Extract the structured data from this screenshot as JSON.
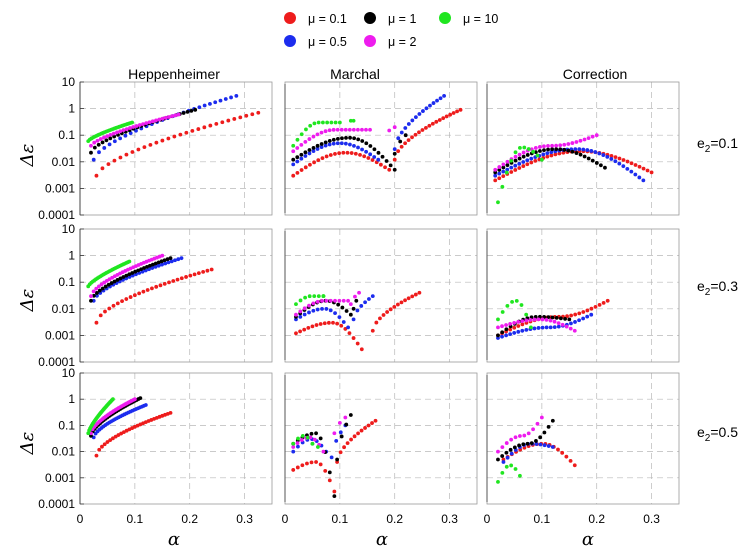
{
  "legend": [
    {
      "label": "μ = 0.1",
      "color": "#ee1c1c",
      "key": "mu01"
    },
    {
      "label": "μ = 1",
      "color": "#000000",
      "key": "mu1"
    },
    {
      "label": "μ = 10",
      "color": "#20e620",
      "key": "mu10"
    },
    {
      "label": "μ = 0.5",
      "color": "#1c2cee",
      "key": "mu05"
    },
    {
      "label": "μ = 2",
      "color": "#ee1cee",
      "key": "mu2"
    }
  ],
  "column_titles": [
    "Heppenheimer",
    "Marchal",
    "Correction"
  ],
  "row_labels": [
    "e2=0.1",
    "e2=0.3",
    "e2=0.5"
  ],
  "row_label_parts": [
    {
      "base": "e",
      "sub": "2",
      "rest": "=0.1"
    },
    {
      "base": "e",
      "sub": "2",
      "rest": "=0.3"
    },
    {
      "base": "e",
      "sub": "2",
      "rest": "=0.5"
    }
  ],
  "ylabel": "Δε",
  "xlabel": "α",
  "y_tick_labels": [
    "10",
    "1",
    "0.1",
    "0.01",
    "0.001",
    "0.0001"
  ],
  "x_tick_labels": [
    "0",
    "0.1",
    "0.2",
    "0.3"
  ],
  "chart_data": {
    "type": "scatter",
    "title": "",
    "xlabel": "α",
    "ylabel": "Δε",
    "x_range": [
      0,
      0.35
    ],
    "y_range": [
      0.0001,
      10
    ],
    "y_scale": "log",
    "panels": [
      {
        "row": 0,
        "col": 0,
        "series": [
          {
            "key": "mu01",
            "x_start": 0.03,
            "x_end": 0.325,
            "y_start": 0.003,
            "y_end": 0.7,
            "curvature": 0.65
          },
          {
            "key": "mu05",
            "x_start": 0.025,
            "x_end": 0.285,
            "y_start": 0.012,
            "y_end": 3.0,
            "curvature": 0.65
          },
          {
            "key": "mu1",
            "x_start": 0.02,
            "x_end": 0.21,
            "y_start": 0.022,
            "y_end": 0.9,
            "curvature": 0.65
          },
          {
            "key": "mu2",
            "x_start": 0.02,
            "x_end": 0.18,
            "y_start": 0.04,
            "y_end": 0.6,
            "curvature": 0.7
          },
          {
            "key": "mu10",
            "x_start": 0.015,
            "x_end": 0.095,
            "y_start": 0.06,
            "y_end": 0.3,
            "curvature": 0.75
          }
        ]
      },
      {
        "row": 0,
        "col": 1,
        "series": [
          {
            "key": "mu01",
            "branch1": {
              "x_start": 0.015,
              "x_end": 0.19,
              "y_start": 0.003,
              "y_peak": 0.022,
              "y_end": 0.005
            },
            "branch2": {
              "x_start": 0.2,
              "x_end": 0.32,
              "y_start": 0.012,
              "y_end": 0.9
            }
          },
          {
            "key": "mu05",
            "branch1": {
              "x_start": 0.015,
              "x_end": 0.17,
              "y_start": 0.008,
              "y_peak": 0.05,
              "y_end": 0.012
            },
            "branch2": {
              "x_start": 0.2,
              "x_end": 0.29,
              "y_start": 0.03,
              "y_end": 3.0
            }
          },
          {
            "key": "mu1",
            "branch1": {
              "x_start": 0.015,
              "x_end": 0.2,
              "y_start": 0.012,
              "y_peak": 0.08,
              "y_end": 0.005
            },
            "branch2": {
              "x_start": 0.2,
              "x_end": 0.22,
              "y_start": 0.02,
              "y_end": 0.1
            }
          },
          {
            "key": "mu2",
            "branch1": {
              "x_start": 0.015,
              "x_end": 0.155,
              "y_start": 0.025,
              "y_peak": 0.16,
              "y_end": 0.16
            },
            "branch2": {
              "x_start": 0.19,
              "x_end": 0.2,
              "y_start": 0.15,
              "y_end": 0.2
            }
          },
          {
            "key": "mu10",
            "branch1": {
              "x_start": 0.015,
              "x_end": 0.1,
              "y_start": 0.04,
              "y_peak": 0.3,
              "y_end": 0.3
            },
            "branch2": {
              "x_start": 0.12,
              "x_end": 0.125,
              "y_start": 0.35,
              "y_end": 0.35
            }
          }
        ]
      },
      {
        "row": 0,
        "col": 2,
        "series": [
          {
            "key": "mu01",
            "x_start": 0.015,
            "x_end": 0.3,
            "y_start": 0.002,
            "y_peak": 0.025,
            "y_end": 0.004
          },
          {
            "key": "mu05",
            "x_start": 0.015,
            "x_end": 0.285,
            "y_start": 0.003,
            "y_peak": 0.03,
            "y_end": 0.002
          },
          {
            "key": "mu1",
            "x_start": 0.015,
            "x_end": 0.215,
            "y_start": 0.004,
            "y_peak": 0.03,
            "y_end": 0.006
          },
          {
            "key": "mu2",
            "x_start": 0.015,
            "x_end": 0.2,
            "y_start": 0.005,
            "y_peak": 0.04,
            "y_end": 0.1
          },
          {
            "key": "mu10",
            "x_start": 0.02,
            "x_end": 0.1,
            "y_start": 0.0003,
            "y_peak": 0.035,
            "y_end": 0.012
          }
        ]
      },
      {
        "row": 1,
        "col": 0,
        "series": [
          {
            "key": "mu01",
            "x_start": 0.03,
            "x_end": 0.24,
            "y_start": 0.003,
            "y_end": 0.3,
            "curvature": 0.6
          },
          {
            "key": "mu05",
            "x_start": 0.025,
            "x_end": 0.185,
            "y_start": 0.02,
            "y_end": 0.8,
            "curvature": 0.65
          },
          {
            "key": "mu1",
            "x_start": 0.02,
            "x_end": 0.165,
            "y_start": 0.02,
            "y_end": 0.8,
            "curvature": 0.65
          },
          {
            "key": "mu2",
            "x_start": 0.02,
            "x_end": 0.15,
            "y_start": 0.03,
            "y_end": 1.0,
            "curvature": 0.65
          },
          {
            "key": "mu10",
            "x_start": 0.015,
            "x_end": 0.09,
            "y_start": 0.07,
            "y_end": 0.6,
            "curvature": 0.75
          }
        ]
      },
      {
        "row": 1,
        "col": 1,
        "series": [
          {
            "key": "mu01",
            "branch1": {
              "x_start": 0.02,
              "x_end": 0.14,
              "y_start": 0.0012,
              "y_peak": 0.003,
              "y_end": 0.0003
            },
            "branch2": {
              "x_start": 0.16,
              "x_end": 0.245,
              "y_start": 0.0015,
              "y_end": 0.04
            }
          },
          {
            "key": "mu05",
            "branch1": {
              "x_start": 0.02,
              "x_end": 0.115,
              "y_start": 0.004,
              "y_peak": 0.01,
              "y_end": 0.002
            },
            "branch2": {
              "x_start": 0.125,
              "x_end": 0.16,
              "y_start": 0.004,
              "y_end": 0.03
            }
          },
          {
            "key": "mu1",
            "branch1": {
              "x_start": 0.02,
              "x_end": 0.12,
              "y_start": 0.005,
              "y_peak": 0.02,
              "y_end": 0.006
            },
            "branch2": {
              "x_start": 0.125,
              "x_end": 0.13,
              "y_start": 0.01,
              "y_end": 0.02
            }
          },
          {
            "key": "mu2",
            "branch1": {
              "x_start": 0.02,
              "x_end": 0.115,
              "y_start": 0.006,
              "y_peak": 0.02,
              "y_end": 0.02
            },
            "branch2": {
              "x_start": 0.12,
              "x_end": 0.135,
              "y_start": 0.015,
              "y_end": 0.04
            }
          },
          {
            "key": "mu10",
            "branch1": {
              "x_start": 0.02,
              "x_end": 0.07,
              "y_start": 0.015,
              "y_peak": 0.03,
              "y_end": 0.03
            },
            "branch2": {
              "x_start": 0.07,
              "x_end": 0.07,
              "y_start": 0.03,
              "y_end": 0.03
            }
          }
        ]
      },
      {
        "row": 1,
        "col": 2,
        "series": [
          {
            "key": "mu01",
            "x_start": 0.02,
            "x_end": 0.22,
            "y_start": 0.001,
            "y_peak": 0.005,
            "y_end": 0.02
          },
          {
            "key": "mu05",
            "x_start": 0.02,
            "x_end": 0.19,
            "y_start": 0.0008,
            "y_peak": 0.002,
            "y_end": 0.006
          },
          {
            "key": "mu1",
            "x_start": 0.02,
            "x_end": 0.15,
            "y_start": 0.001,
            "y_peak": 0.005,
            "y_end": 0.004
          },
          {
            "key": "mu2",
            "x_start": 0.02,
            "x_end": 0.16,
            "y_start": 0.002,
            "y_peak": 0.004,
            "y_end": 0.0015
          },
          {
            "key": "mu10",
            "x_start": 0.02,
            "x_end": 0.08,
            "y_start": 0.004,
            "y_peak": 0.02,
            "y_end": 0.002
          }
        ]
      },
      {
        "row": 2,
        "col": 0,
        "series": [
          {
            "key": "mu01",
            "x_start": 0.03,
            "x_end": 0.165,
            "y_start": 0.007,
            "y_end": 0.3,
            "curvature": 0.6
          },
          {
            "key": "mu05",
            "x_start": 0.025,
            "x_end": 0.12,
            "y_start": 0.035,
            "y_end": 0.6,
            "curvature": 0.65
          },
          {
            "key": "mu1",
            "x_start": 0.02,
            "x_end": 0.11,
            "y_start": 0.04,
            "y_end": 1.1,
            "curvature": 0.65
          },
          {
            "key": "mu2",
            "x_start": 0.02,
            "x_end": 0.1,
            "y_start": 0.05,
            "y_end": 1.0,
            "curvature": 0.65
          },
          {
            "key": "mu10",
            "x_start": 0.015,
            "x_end": 0.06,
            "y_start": 0.05,
            "y_end": 1.0,
            "curvature": 0.75
          }
        ]
      },
      {
        "row": 2,
        "col": 1,
        "series": [
          {
            "key": "mu01",
            "branch1": {
              "x_start": 0.015,
              "x_end": 0.09,
              "y_start": 0.002,
              "y_peak": 0.004,
              "y_end": 0.0003
            },
            "branch2": {
              "x_start": 0.095,
              "x_end": 0.165,
              "y_start": 0.004,
              "y_end": 0.15
            }
          },
          {
            "key": "mu05",
            "branch1": {
              "x_start": 0.015,
              "x_end": 0.075,
              "y_start": 0.01,
              "y_peak": 0.03,
              "y_end": 0.01
            },
            "branch2": {
              "x_start": 0.085,
              "x_end": 0.11,
              "y_start": 0.006,
              "y_end": 0.1
            }
          },
          {
            "key": "mu1",
            "branch1": {
              "x_start": 0.015,
              "x_end": 0.09,
              "y_start": 0.02,
              "y_peak": 0.05,
              "y_end": 0.0002
            },
            "branch2": {
              "x_start": 0.095,
              "x_end": 0.12,
              "y_start": 0.005,
              "y_end": 0.25
            }
          },
          {
            "key": "mu2",
            "branch1": {
              "x_start": 0.015,
              "x_end": 0.07,
              "y_start": 0.015,
              "y_peak": 0.035,
              "y_end": 0.01
            },
            "branch2": {
              "x_start": 0.09,
              "x_end": 0.11,
              "y_start": 0.05,
              "y_end": 0.2
            }
          },
          {
            "key": "mu10",
            "branch1": {
              "x_start": 0.015,
              "x_end": 0.05,
              "y_start": 0.02,
              "y_peak": 0.04,
              "y_end": 0.02
            },
            "branch2": {
              "x_start": 0.05,
              "x_end": 0.06,
              "y_start": 0.02,
              "y_end": 0.015
            }
          }
        ]
      },
      {
        "row": 2,
        "col": 2,
        "series": [
          {
            "key": "mu01",
            "x_start": 0.03,
            "x_end": 0.16,
            "y_start": 0.005,
            "y_peak": 0.02,
            "y_end": 0.003
          },
          {
            "key": "mu05",
            "x_start": 0.03,
            "x_end": 0.12,
            "y_start": 0.004,
            "y_peak": 0.02,
            "y_end": 0.015
          },
          {
            "key": "mu1",
            "x_start": 0.02,
            "x_end": 0.12,
            "y_start": 0.005,
            "y_peak": 0.02,
            "y_end": 0.15
          },
          {
            "key": "mu2",
            "x_start": 0.02,
            "x_end": 0.1,
            "y_start": 0.01,
            "y_peak": 0.04,
            "y_end": 0.2
          },
          {
            "key": "mu10",
            "x_start": 0.02,
            "x_end": 0.06,
            "y_start": 0.0007,
            "y_peak": 0.003,
            "y_end": 0.0012
          }
        ]
      }
    ]
  }
}
